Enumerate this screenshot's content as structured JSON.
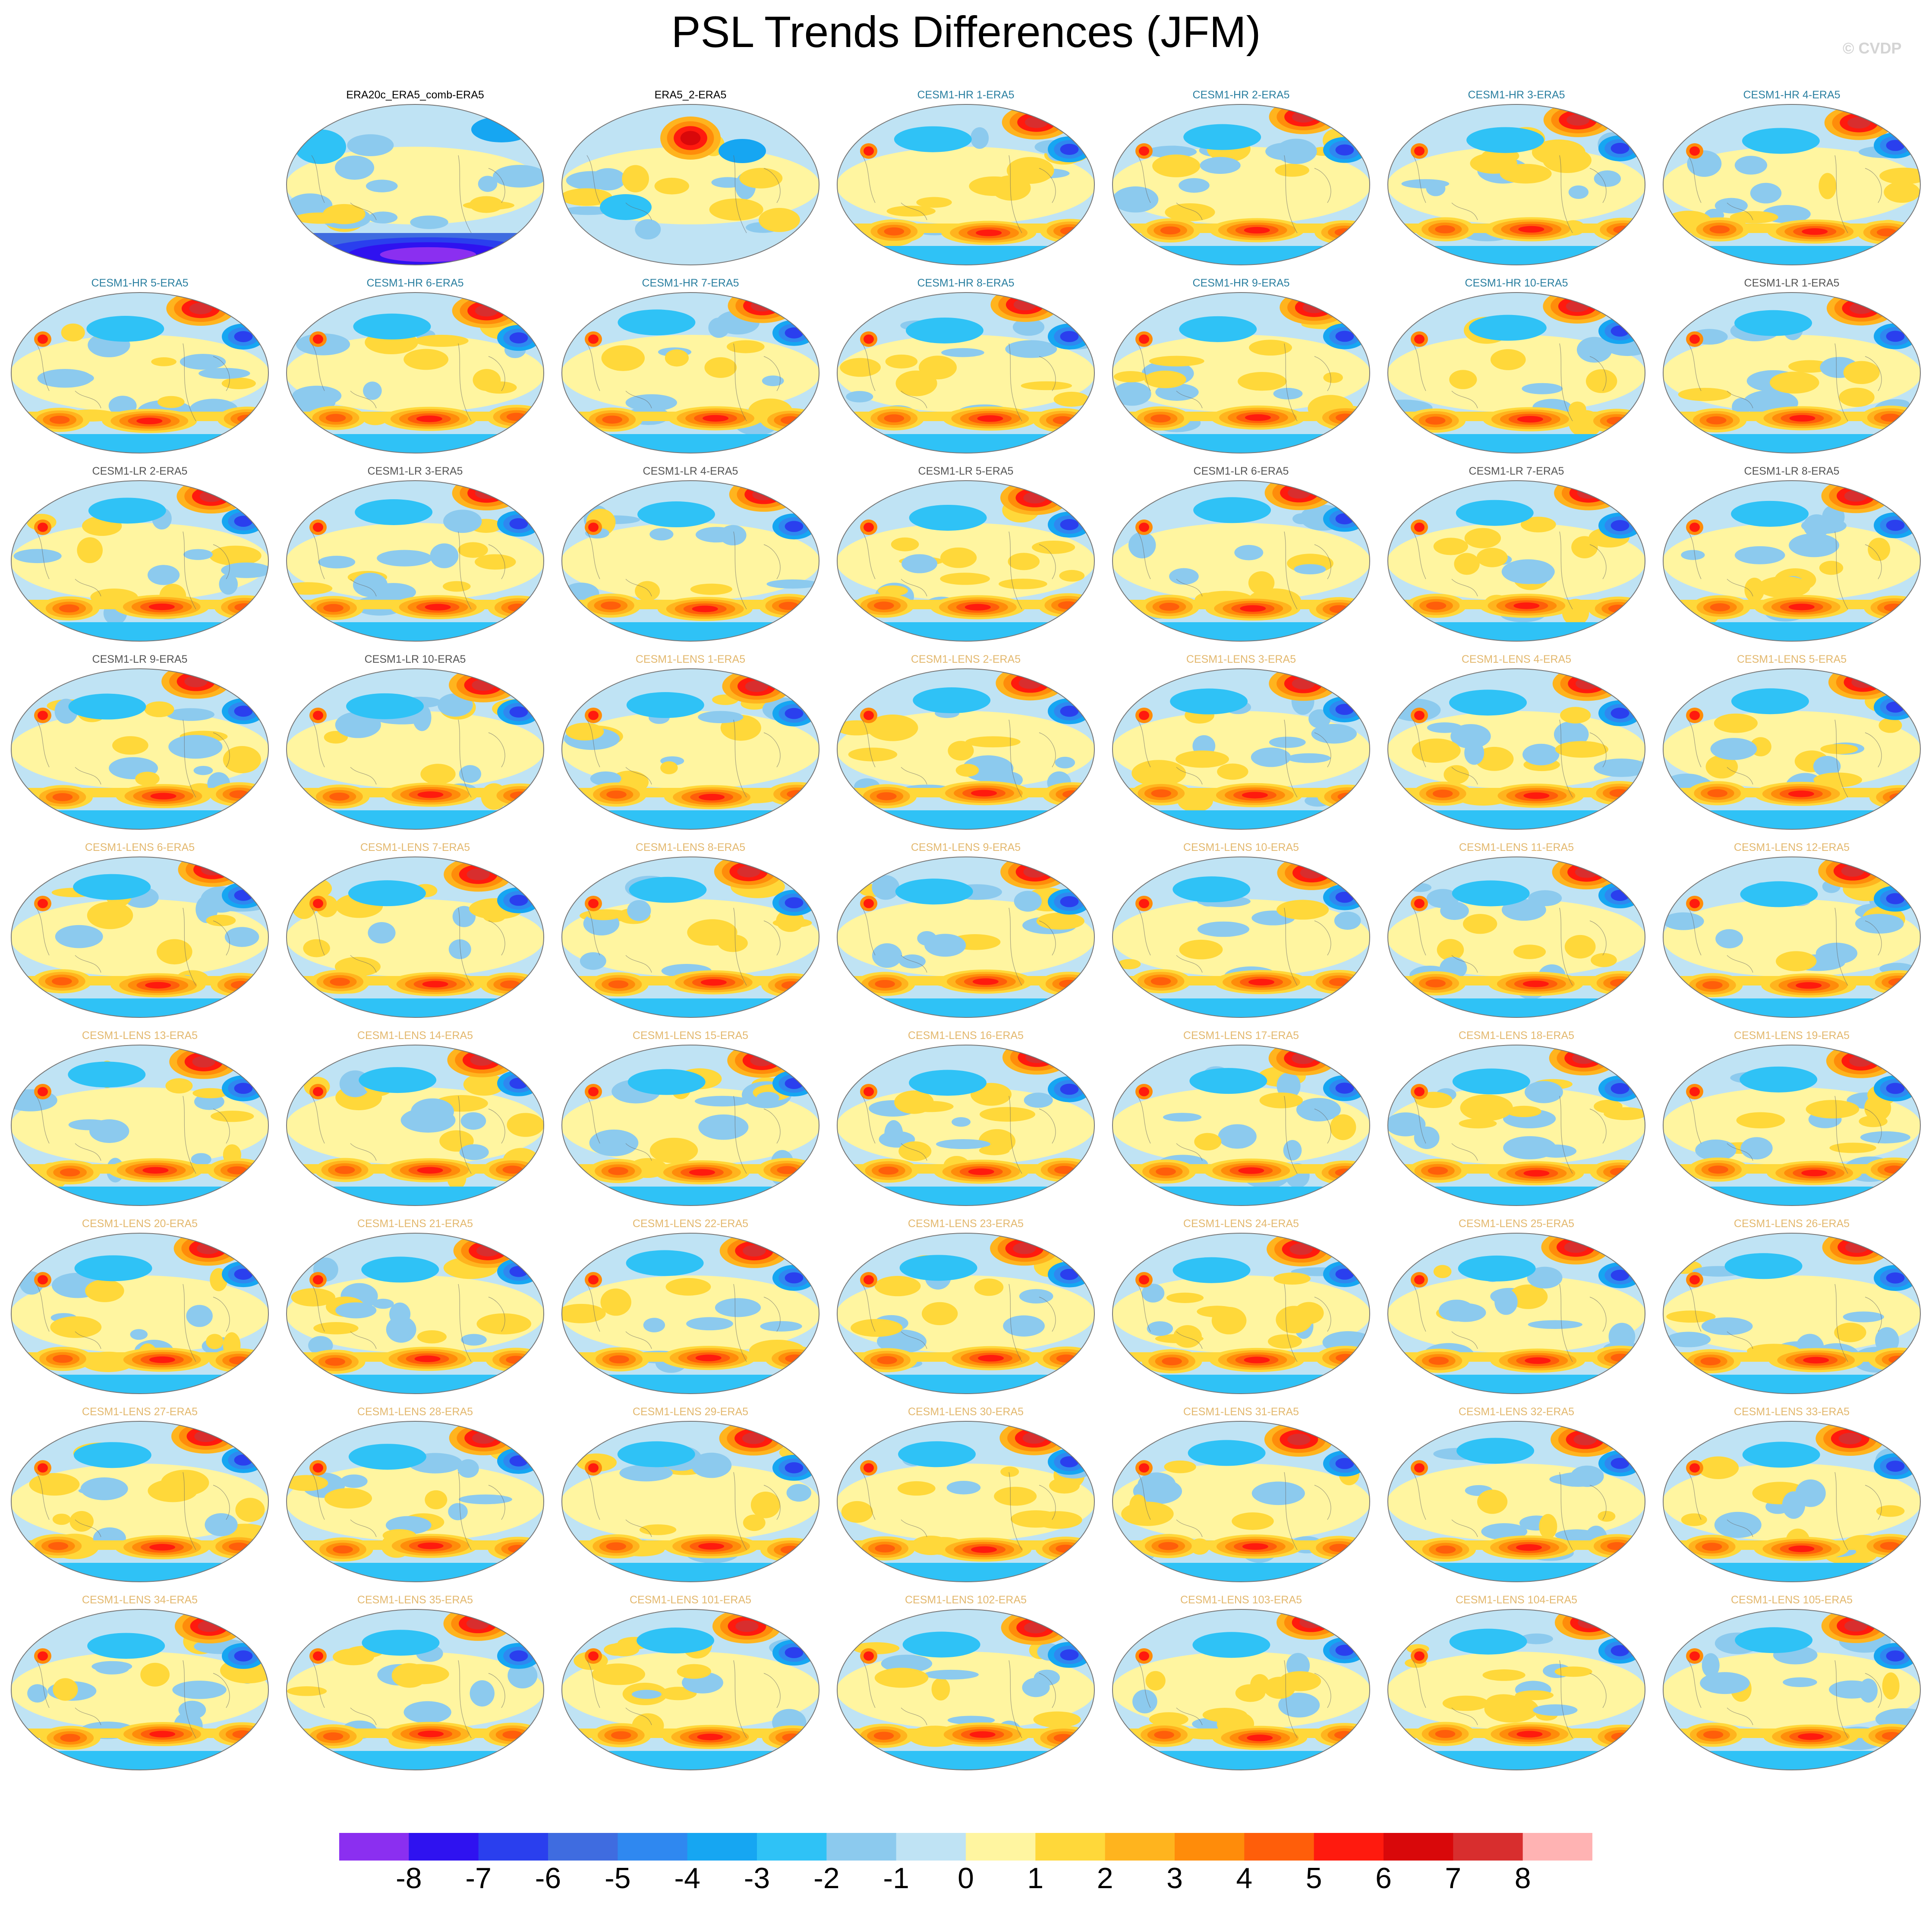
{
  "title": "PSL Trends Differences (JFM)",
  "watermark": "© CVDP",
  "colorbar": {
    "colors": [
      "#8b2ff0",
      "#2f12f0",
      "#2a3fee",
      "#3f6ce0",
      "#2f88f0",
      "#16a6f2",
      "#2fc2f6",
      "#8ccaee",
      "#bfe3f4",
      "#fff5a0",
      "#ffd83a",
      "#ffb41e",
      "#ff8c0a",
      "#ff5e0a",
      "#ff1a0e",
      "#d9080a",
      "#d82e2e",
      "#ffb3b3"
    ],
    "labels": [
      "-8",
      "-7",
      "-6",
      "-5",
      "-4",
      "-3",
      "-2",
      "-1",
      "0",
      "1",
      "2",
      "3",
      "4",
      "5",
      "6",
      "7",
      "8"
    ]
  },
  "panels": [
    {
      "title": "ERA20c_ERA5_comb-ERA5",
      "group": "obs"
    },
    {
      "title": "ERA5_2-ERA5",
      "group": "obs"
    },
    {
      "title": "CESM1-HR 1-ERA5",
      "group": "hr"
    },
    {
      "title": "CESM1-HR 2-ERA5",
      "group": "hr"
    },
    {
      "title": "CESM1-HR 3-ERA5",
      "group": "hr"
    },
    {
      "title": "CESM1-HR 4-ERA5",
      "group": "hr"
    },
    {
      "title": "CESM1-HR 5-ERA5",
      "group": "hr"
    },
    {
      "title": "CESM1-HR 6-ERA5",
      "group": "hr"
    },
    {
      "title": "CESM1-HR 7-ERA5",
      "group": "hr"
    },
    {
      "title": "CESM1-HR 8-ERA5",
      "group": "hr"
    },
    {
      "title": "CESM1-HR 9-ERA5",
      "group": "hr"
    },
    {
      "title": "CESM1-HR 10-ERA5",
      "group": "hr"
    },
    {
      "title": "CESM1-LR 1-ERA5",
      "group": "lr"
    },
    {
      "title": "CESM1-LR 2-ERA5",
      "group": "lr"
    },
    {
      "title": "CESM1-LR 3-ERA5",
      "group": "lr"
    },
    {
      "title": "CESM1-LR 4-ERA5",
      "group": "lr"
    },
    {
      "title": "CESM1-LR 5-ERA5",
      "group": "lr"
    },
    {
      "title": "CESM1-LR 6-ERA5",
      "group": "lr"
    },
    {
      "title": "CESM1-LR 7-ERA5",
      "group": "lr"
    },
    {
      "title": "CESM1-LR 8-ERA5",
      "group": "lr"
    },
    {
      "title": "CESM1-LR 9-ERA5",
      "group": "lr"
    },
    {
      "title": "CESM1-LR 10-ERA5",
      "group": "lr"
    },
    {
      "title": "CESM1-LENS 1-ERA5",
      "group": "lens"
    },
    {
      "title": "CESM1-LENS 2-ERA5",
      "group": "lens"
    },
    {
      "title": "CESM1-LENS 3-ERA5",
      "group": "lens"
    },
    {
      "title": "CESM1-LENS 4-ERA5",
      "group": "lens"
    },
    {
      "title": "CESM1-LENS 5-ERA5",
      "group": "lens"
    },
    {
      "title": "CESM1-LENS 6-ERA5",
      "group": "lens"
    },
    {
      "title": "CESM1-LENS 7-ERA5",
      "group": "lens"
    },
    {
      "title": "CESM1-LENS 8-ERA5",
      "group": "lens"
    },
    {
      "title": "CESM1-LENS 9-ERA5",
      "group": "lens"
    },
    {
      "title": "CESM1-LENS 10-ERA5",
      "group": "lens"
    },
    {
      "title": "CESM1-LENS 11-ERA5",
      "group": "lens"
    },
    {
      "title": "CESM1-LENS 12-ERA5",
      "group": "lens"
    },
    {
      "title": "CESM1-LENS 13-ERA5",
      "group": "lens"
    },
    {
      "title": "CESM1-LENS 14-ERA5",
      "group": "lens"
    },
    {
      "title": "CESM1-LENS 15-ERA5",
      "group": "lens"
    },
    {
      "title": "CESM1-LENS 16-ERA5",
      "group": "lens"
    },
    {
      "title": "CESM1-LENS 17-ERA5",
      "group": "lens"
    },
    {
      "title": "CESM1-LENS 18-ERA5",
      "group": "lens"
    },
    {
      "title": "CESM1-LENS 19-ERA5",
      "group": "lens"
    },
    {
      "title": "CESM1-LENS 20-ERA5",
      "group": "lens"
    },
    {
      "title": "CESM1-LENS 21-ERA5",
      "group": "lens"
    },
    {
      "title": "CESM1-LENS 22-ERA5",
      "group": "lens"
    },
    {
      "title": "CESM1-LENS 23-ERA5",
      "group": "lens"
    },
    {
      "title": "CESM1-LENS 24-ERA5",
      "group": "lens"
    },
    {
      "title": "CESM1-LENS 25-ERA5",
      "group": "lens"
    },
    {
      "title": "CESM1-LENS 26-ERA5",
      "group": "lens"
    },
    {
      "title": "CESM1-LENS 27-ERA5",
      "group": "lens"
    },
    {
      "title": "CESM1-LENS 28-ERA5",
      "group": "lens"
    },
    {
      "title": "CESM1-LENS 29-ERA5",
      "group": "lens"
    },
    {
      "title": "CESM1-LENS 30-ERA5",
      "group": "lens"
    },
    {
      "title": "CESM1-LENS 31-ERA5",
      "group": "lens"
    },
    {
      "title": "CESM1-LENS 32-ERA5",
      "group": "lens"
    },
    {
      "title": "CESM1-LENS 33-ERA5",
      "group": "lens"
    },
    {
      "title": "CESM1-LENS 34-ERA5",
      "group": "lens"
    },
    {
      "title": "CESM1-LENS 35-ERA5",
      "group": "lens"
    },
    {
      "title": "CESM1-LENS 101-ERA5",
      "group": "lens"
    },
    {
      "title": "CESM1-LENS 102-ERA5",
      "group": "lens"
    },
    {
      "title": "CESM1-LENS 103-ERA5",
      "group": "lens"
    },
    {
      "title": "CESM1-LENS 104-ERA5",
      "group": "lens"
    },
    {
      "title": "CESM1-LENS 105-ERA5",
      "group": "lens"
    }
  ]
}
